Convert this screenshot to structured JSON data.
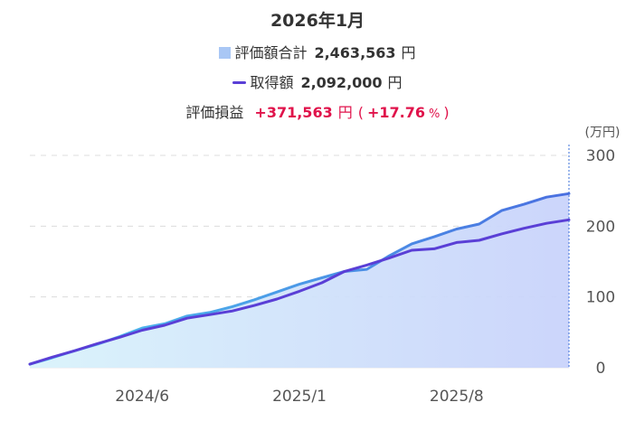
{
  "summary": {
    "title": "2026年1月",
    "valuation_label": "評価額合計",
    "valuation_value": "2,463,563",
    "acquisition_label": "取得額",
    "acquisition_value": "2,092,000",
    "currency": "円",
    "gain_label": "評価損益",
    "gain_value": "+371,563",
    "gain_open": "(",
    "gain_pct": "+17.76",
    "gain_pct_unit": "%",
    "gain_close": ")"
  },
  "colors": {
    "area_fill": "#c8d6fb",
    "valuation_line": "#4a7fe0",
    "acquisition_line": "#5a3fd6",
    "gain": "#e0134b",
    "grid": "#dcdcdc"
  },
  "chart_data": {
    "type": "area",
    "y_unit": "(万円)",
    "ylim": [
      0,
      300
    ],
    "y_ticks": [
      0,
      100,
      200,
      300
    ],
    "x_tick_labels": [
      "2024/6",
      "2025/1",
      "2025/8"
    ],
    "x_tick_months": [
      5,
      12,
      19
    ],
    "months": [
      "2024/1",
      "2024/2",
      "2024/3",
      "2024/4",
      "2024/5",
      "2024/6",
      "2024/7",
      "2024/8",
      "2024/9",
      "2024/10",
      "2024/11",
      "2024/12",
      "2025/1",
      "2025/2",
      "2025/3",
      "2025/4",
      "2025/5",
      "2025/6",
      "2025/7",
      "2025/8",
      "2025/9",
      "2025/10",
      "2025/11",
      "2025/12",
      "2026/1"
    ],
    "grid": true,
    "series": [
      {
        "name": "評価額合計",
        "kind": "area",
        "values": [
          5,
          14,
          24,
          33,
          44,
          56,
          62,
          73,
          78,
          86,
          96,
          107,
          118,
          127,
          136,
          139,
          158,
          175,
          185,
          196,
          203,
          222,
          231,
          241,
          246
        ]
      },
      {
        "name": "取得額",
        "kind": "line",
        "values": [
          5,
          15,
          24,
          34,
          43,
          53,
          60,
          70,
          75,
          80,
          88,
          97,
          108,
          120,
          136,
          145,
          155,
          166,
          168,
          177,
          180,
          189,
          197,
          204,
          209
        ]
      }
    ]
  }
}
